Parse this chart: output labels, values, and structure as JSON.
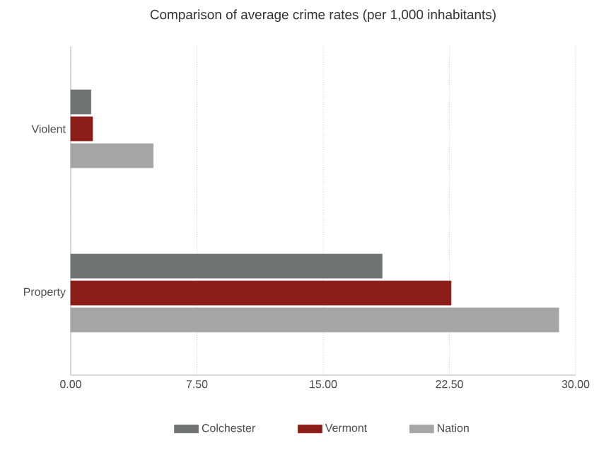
{
  "chart_data": {
    "type": "bar",
    "orientation": "horizontal",
    "title": "Comparison of average crime rates (per 1,000 inhabitants)",
    "categories": [
      "Violent",
      "Property"
    ],
    "series": [
      {
        "name": "Colchester",
        "color": "#6f7472",
        "values": [
          1.2,
          18.5
        ]
      },
      {
        "name": "Vermont",
        "color": "#8c1d18",
        "values": [
          1.3,
          22.6
        ]
      },
      {
        "name": "Nation",
        "color": "#a6a6a6",
        "values": [
          4.9,
          29.0
        ]
      }
    ],
    "xlim": [
      0,
      30
    ],
    "xticks": [
      {
        "value": 0,
        "label": "0.00"
      },
      {
        "value": 7.5,
        "label": "7.50"
      },
      {
        "value": 15,
        "label": "15.00"
      },
      {
        "value": 22.5,
        "label": "22.50"
      },
      {
        "value": 30,
        "label": "30.00"
      }
    ],
    "grid": "x",
    "legend": "bottom"
  }
}
